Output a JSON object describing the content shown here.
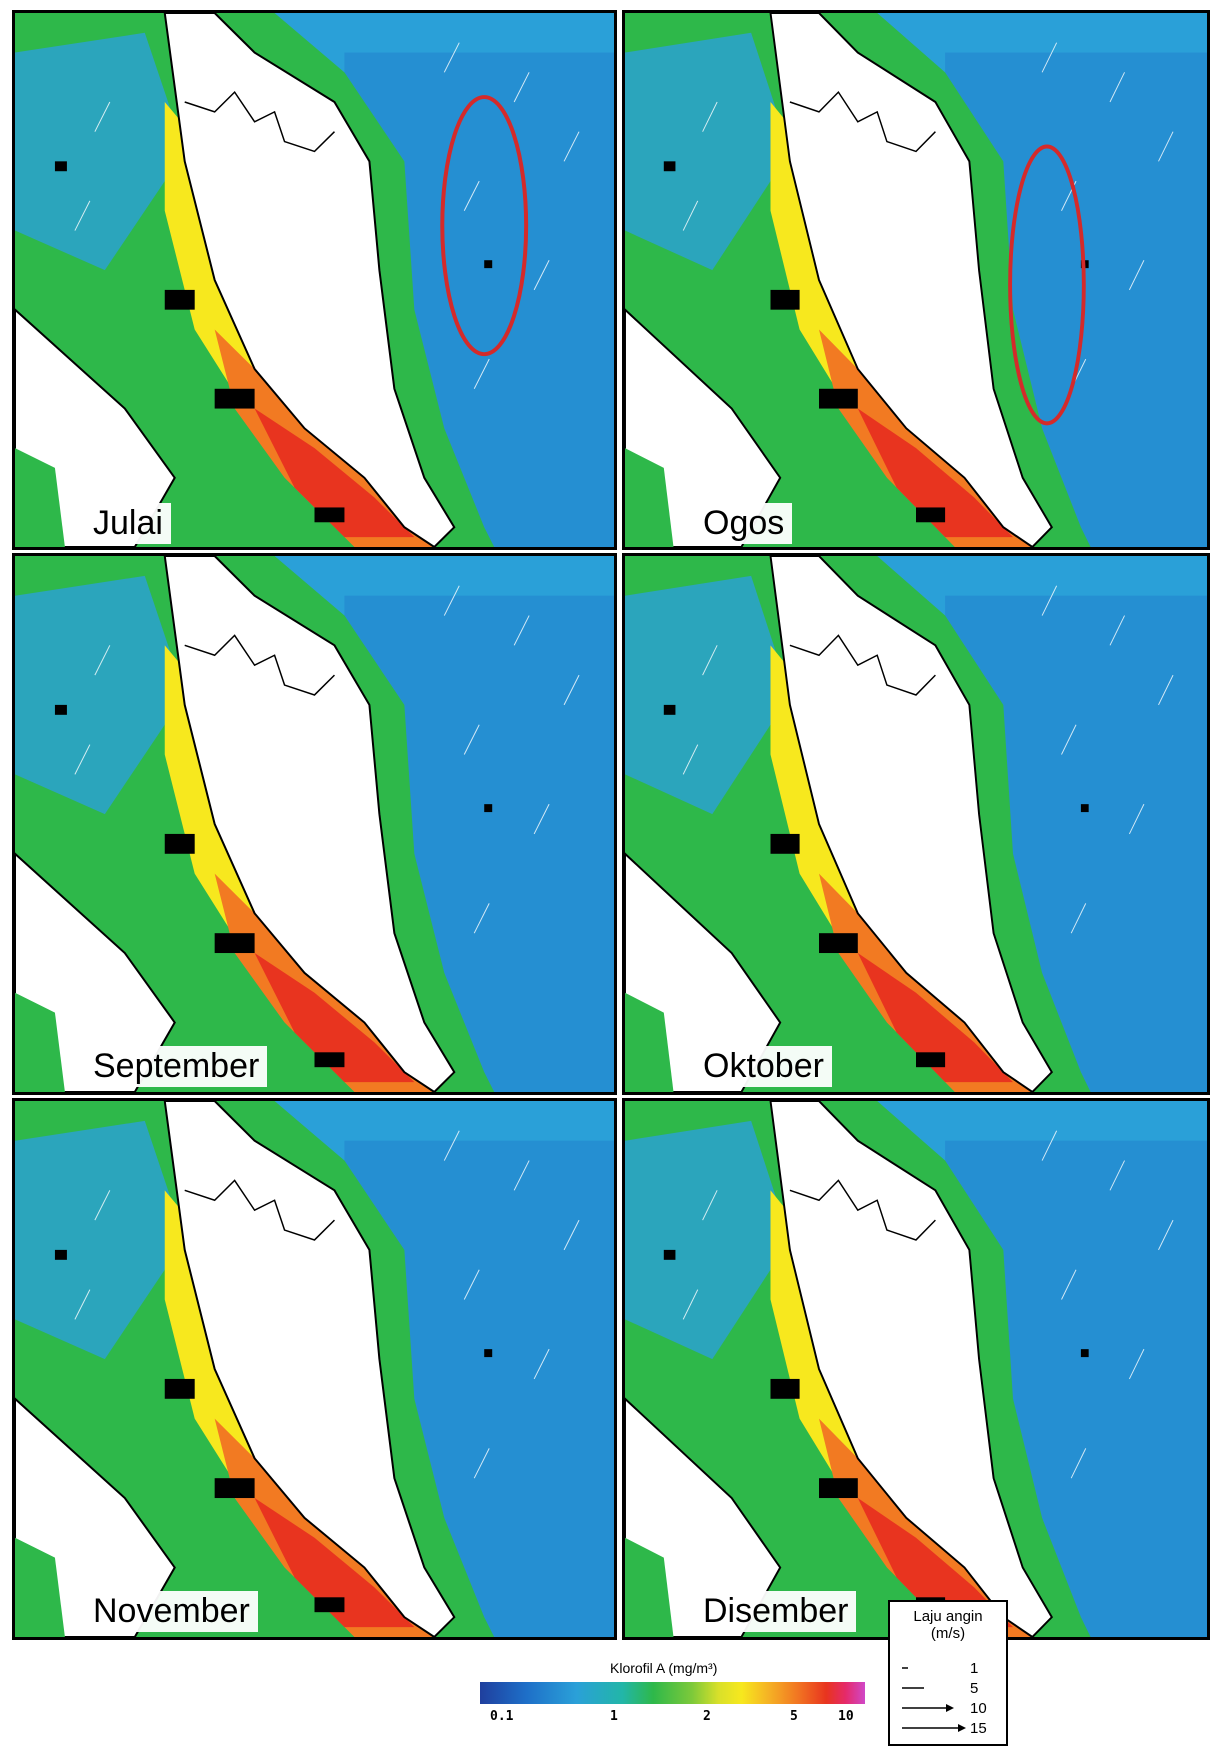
{
  "panels": [
    {
      "id": "julai",
      "month": "Julai",
      "highlight": true
    },
    {
      "id": "ogos",
      "month": "Ogos",
      "highlight": true
    },
    {
      "id": "september",
      "month": "September",
      "highlight": false
    },
    {
      "id": "oktober",
      "month": "Oktober",
      "highlight": false
    },
    {
      "id": "november",
      "month": "November",
      "highlight": false
    },
    {
      "id": "disember",
      "month": "Disember",
      "highlight": false
    }
  ],
  "colorbar": {
    "title": "Klorofil A (mg/m³)",
    "ticks": [
      "0.1",
      "1",
      "2",
      "5",
      "10"
    ],
    "colors": [
      "#1f3f9e",
      "#1e6fc8",
      "#2aa0d8",
      "#22b6a8",
      "#2eb84a",
      "#7cc93a",
      "#d9e02a",
      "#f7e81e",
      "#f5b225",
      "#f27a22",
      "#e8341f",
      "#e52a6a",
      "#d048c8"
    ]
  },
  "wind_legend": {
    "title_line1": "Laju angin",
    "title_line2": "(m/s)",
    "entries": [
      "1",
      "5",
      "10",
      "15"
    ]
  },
  "colors": {
    "land": "#ffffff",
    "highlight": "#d42a2a",
    "mask": "#000000"
  }
}
